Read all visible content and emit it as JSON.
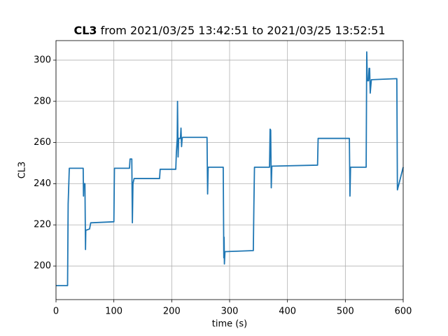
{
  "chart_data": {
    "type": "line",
    "title_name": "CL3",
    "title": "from 2021/03/25 13:42:51 to 2021/03/25 13:52:51",
    "x_label": "time (s)",
    "y_label": "CL3",
    "x": [
      0,
      20,
      21,
      23,
      47,
      47.5,
      48,
      48.5,
      50,
      51,
      51.5,
      53,
      58,
      60,
      100,
      101,
      127,
      128,
      131,
      132,
      133,
      135,
      179,
      180,
      207,
      208,
      209.5,
      210,
      211,
      212,
      215,
      216,
      217,
      218,
      219,
      260,
      261,
      262,
      263,
      288,
      289,
      290,
      290.5,
      291,
      292,
      341,
      342,
      343,
      369,
      370,
      371,
      372,
      373,
      451,
      452,
      453,
      507,
      508,
      509,
      536,
      537,
      538,
      540,
      541,
      542,
      543,
      545,
      588,
      589,
      590,
      600
    ],
    "values": [
      190.5,
      190.5,
      230,
      247.5,
      247.5,
      234,
      240,
      240,
      240,
      208,
      217.5,
      217.5,
      218,
      221,
      221.5,
      247.5,
      247.5,
      252,
      252,
      221,
      240,
      242.5,
      242.5,
      247,
      247,
      255,
      262,
      280,
      253,
      262,
      262,
      267,
      258,
      262,
      262.5,
      262.5,
      262.5,
      235,
      248,
      248,
      248,
      204,
      214,
      201,
      207,
      207.5,
      230,
      248,
      248,
      266.5,
      266,
      238,
      248.5,
      249,
      249,
      262,
      262,
      234,
      248,
      248,
      304,
      290,
      290,
      296,
      296,
      284,
      290.5,
      291,
      291,
      237,
      248
    ],
    "color": "#1f77b4",
    "xlim": [
      0,
      600
    ],
    "xticks": [
      0,
      100,
      200,
      300,
      400,
      500,
      600
    ],
    "ylim": [
      183.7,
      309.5
    ],
    "yticks": [
      200,
      220,
      240,
      260,
      280,
      300
    ],
    "grid": true
  }
}
